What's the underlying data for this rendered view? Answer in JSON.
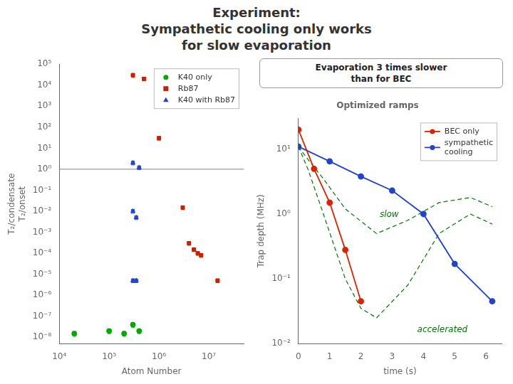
{
  "title": [
    "Experiment:",
    "Sympathetic cooling only works",
    "for slow evaporation"
  ],
  "chart_data": [
    {
      "type": "scatter",
      "xlabel": "Atom Number",
      "ylabel": [
        "T₂/condensate",
        "T₂/onset"
      ],
      "log": true,
      "xlim": [
        10000,
        50000000
      ],
      "xticks": [
        {
          "value": 10000,
          "label": "10⁴"
        },
        {
          "value": 100000,
          "label": "10⁵"
        },
        {
          "value": 1000000,
          "label": "10⁶"
        },
        {
          "value": 10000000,
          "label": "10⁷"
        }
      ],
      "ylim": [
        5e-09,
        100000
      ],
      "yticks": [
        {
          "value": 1e-08,
          "label": "10⁻⁸"
        },
        {
          "value": 1e-07,
          "label": "10⁻⁷"
        },
        {
          "value": 1e-06,
          "label": "10⁻⁶"
        },
        {
          "value": 1e-05,
          "label": "10⁻⁵"
        },
        {
          "value": 0.0001,
          "label": "10⁻⁴"
        },
        {
          "value": 0.001,
          "label": "10⁻³"
        },
        {
          "value": 0.01,
          "label": "10⁻²"
        },
        {
          "value": 0.1,
          "label": "10⁻¹"
        },
        {
          "value": 1,
          "label": "10⁰"
        },
        {
          "value": 10,
          "label": "10¹"
        },
        {
          "value": 100,
          "label": "10²"
        },
        {
          "value": 1000,
          "label": "10³"
        },
        {
          "value": 10000,
          "label": "10⁴"
        },
        {
          "value": 100000,
          "label": "10⁵"
        }
      ],
      "grid": false,
      "legend": "upper right",
      "hlines": [
        {
          "value": 1,
          "color": "gray"
        }
      ],
      "series": [
        {
          "name": "K40 only",
          "color": "#00aa00",
          "marker": "circle",
          "x": [
            20000,
            100000,
            200000,
            300000,
            400000
          ],
          "values": [
            1.5e-08,
            2e-08,
            1.5e-08,
            4e-08,
            2e-08
          ],
          "x_err": [
            1800,
            9000,
            18000,
            27000,
            36000
          ],
          "y_err": [
            3.75e-09,
            5e-09,
            3.75e-09,
            1e-08,
            5e-09
          ]
        },
        {
          "name": "Rb87",
          "color": "#cc2200",
          "marker": "square",
          "x": [
            300000,
            500000,
            1000000,
            3000000,
            4000000,
            5000000,
            6000000,
            7000000,
            15000000
          ],
          "values": [
            30000,
            20000,
            30,
            0.015,
            0.0003,
            0.00015,
            0.0001,
            8e-05,
            5e-06
          ],
          "x_err": [
            21000,
            35000,
            70000,
            210000,
            280000,
            350000,
            420000,
            490000,
            1050000
          ],
          "y_err": [
            6000,
            4000,
            6,
            0.003,
            6e-05,
            3e-05,
            2e-05,
            1.6e-05,
            1e-06
          ]
        },
        {
          "name": "K40 with Rb87",
          "color": "#2244cc",
          "marker": "triangle",
          "x": [
            300000,
            400000,
            300000,
            350000,
            300000,
            350000
          ],
          "values": [
            2.0,
            1.2,
            0.01,
            0.005,
            5e-06,
            5e-06
          ],
          "x_err": [
            21000,
            28000,
            21000,
            24500,
            21000,
            24500
          ],
          "y_err": [
            0.4,
            0.24,
            0.002,
            0.001,
            1e-06,
            1e-06
          ]
        }
      ]
    },
    {
      "type": "line",
      "title": "Optimized ramps",
      "xlabel": "time (s)",
      "ylabel": "Trap depth (MHz)",
      "log": "y",
      "xlim": [
        0,
        6.5
      ],
      "xticks": [
        0,
        1,
        2,
        3,
        4,
        5,
        6
      ],
      "ylim": [
        0.01,
        30
      ],
      "yticks": [
        {
          "value": 0.01,
          "label": "10⁻²"
        },
        {
          "value": 0.1,
          "label": "10⁻¹"
        },
        {
          "value": 1,
          "label": "10⁰"
        },
        {
          "value": 10,
          "label": "10¹"
        }
      ],
      "grid": false,
      "legend": "upper right",
      "series": [
        {
          "name": "BEC only",
          "color": "#dd2200",
          "marker": "circle",
          "line_style": "solid",
          "x": [
            0,
            0.5,
            1.0,
            1.5,
            2.0
          ],
          "values": [
            20.0,
            5.0,
            1.5,
            0.28,
            0.045
          ]
        },
        {
          "name": "sympathetic\ncooling",
          "color": "#2244cc",
          "marker": "circle",
          "line_style": "solid",
          "x": [
            0,
            1,
            2,
            3,
            4,
            5,
            6.2
          ],
          "values": [
            11.0,
            6.5,
            3.8,
            2.3,
            1.0,
            0.17,
            0.045
          ]
        },
        {
          "color": "#007700",
          "line_style": "dashed",
          "x": [
            0.0,
            0.3,
            0.8,
            1.5,
            2.5,
            3.5,
            4.5,
            5.5,
            6.2
          ],
          "values": [
            11.0,
            7.0,
            3.5,
            1.2,
            0.5,
            0.8,
            1.5,
            1.8,
            1.3
          ]
        },
        {
          "color": "#007700",
          "line_style": "dashed",
          "x": [
            0.0,
            0.3,
            0.8,
            1.5,
            2.0,
            2.5,
            3.5,
            4.5,
            5.5,
            6.2
          ],
          "values": [
            11.0,
            5.0,
            1.0,
            0.1,
            0.035,
            0.025,
            0.08,
            0.5,
            1.0,
            0.7
          ]
        }
      ],
      "annotations": [
        {
          "text": "Evaporation 3 times slower\nthan for BEC"
        },
        {
          "text": "slow",
          "x": 2.6,
          "y": 0.9,
          "color": "#007700"
        },
        {
          "text": "accelerated",
          "x": 3.8,
          "y": 0.015,
          "color": "#007700"
        }
      ]
    }
  ]
}
